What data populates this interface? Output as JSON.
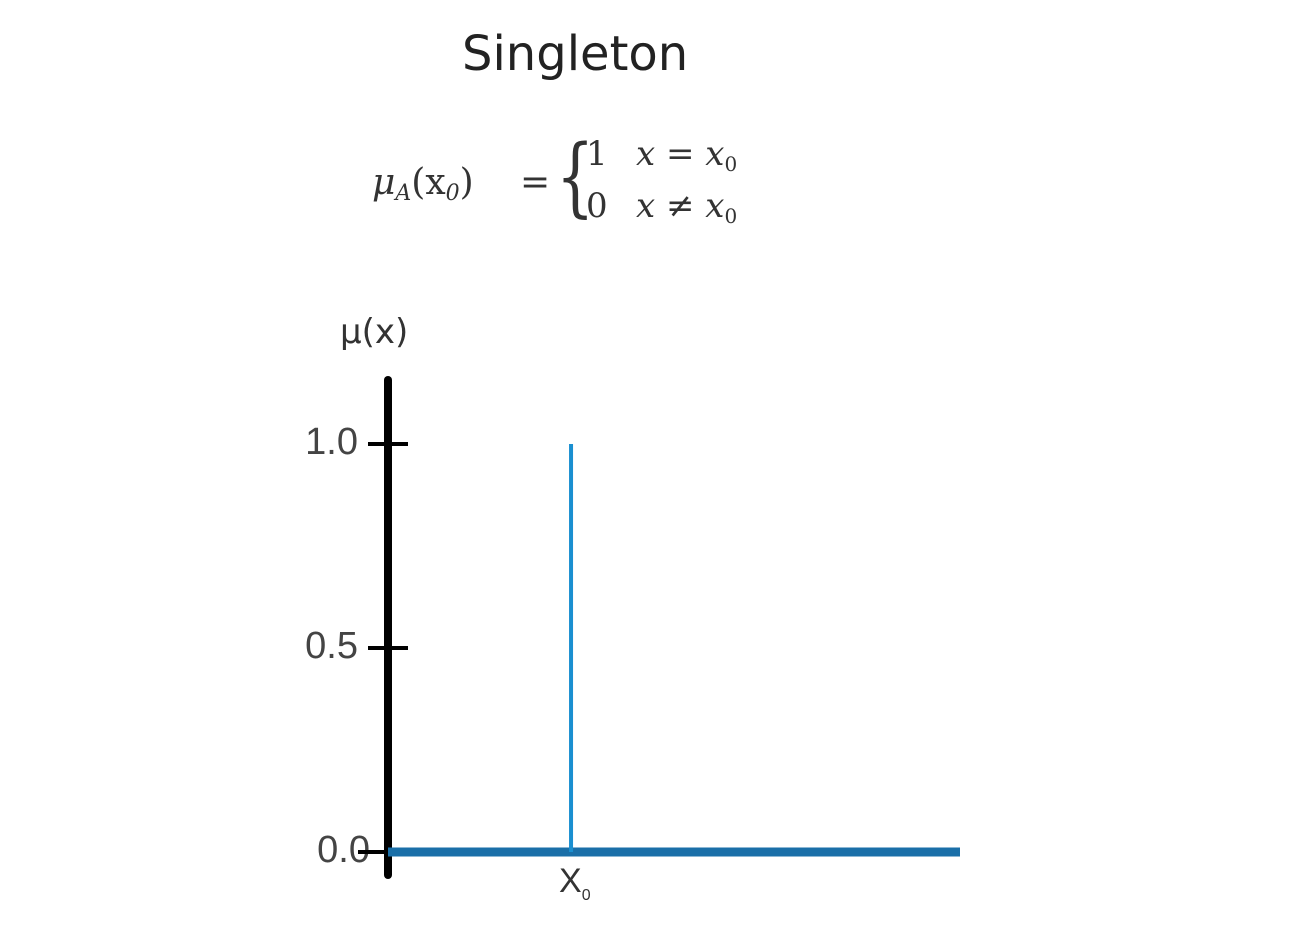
{
  "chart_data": {
    "type": "line",
    "title": "Singleton",
    "formula": {
      "lhs_base": "μ",
      "lhs_sub": "A",
      "lhs_arg": "(x",
      "lhs_arg_sub": "0",
      "lhs_close": ")",
      "equals": "=",
      "cases": [
        {
          "value": "1",
          "condition": "x = x",
          "condition_sub": "0"
        },
        {
          "value": "0",
          "condition": "x ≠ x",
          "condition_sub": "0"
        }
      ]
    },
    "ylabel": "μ(x)",
    "xlabel": "",
    "ylim": [
      0,
      1.15
    ],
    "yticks": [
      {
        "value": 0.0,
        "label": "0.0"
      },
      {
        "value": 0.5,
        "label": "0.5"
      },
      {
        "value": 1.0,
        "label": "1.0"
      }
    ],
    "xticks": [
      {
        "label": "X",
        "label_sub": "0"
      }
    ],
    "x_domain": [
      0,
      1
    ],
    "series": [
      {
        "segments": [
          {
            "x": [
              0,
              1
            ],
            "y": [
              0,
              0
            ]
          },
          {
            "x": [
              0.32,
              0.32
            ],
            "y": [
              0,
              1.0
            ]
          }
        ]
      }
    ],
    "spike_x": 0.32,
    "line_color": "#1a8fd0",
    "baseline_color": "#1a6fa8",
    "axis_color": "#000000",
    "grid": false,
    "legend": "none"
  }
}
